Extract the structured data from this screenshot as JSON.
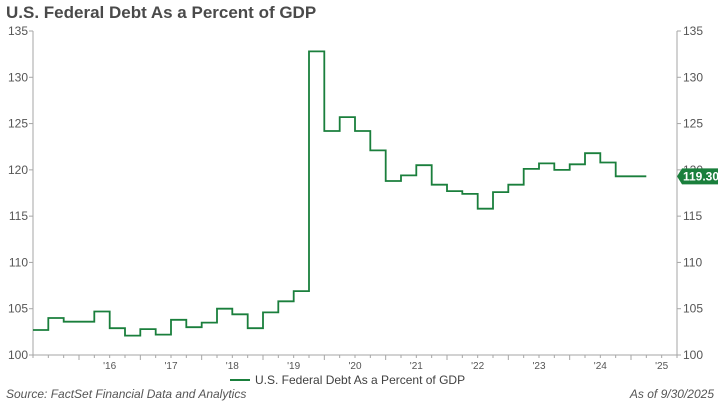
{
  "chart_data": {
    "type": "line",
    "title": "U.S. Federal Debt As a Percent of GDP",
    "x_tick_labels": [
      "'16",
      "'17",
      "'18",
      "'19",
      "'20",
      "'21",
      "'22",
      "'23",
      "'24",
      "'25"
    ],
    "x_tick_years": [
      2016,
      2017,
      2018,
      2019,
      2020,
      2021,
      2022,
      2023,
      2024,
      2025
    ],
    "xlim": [
      2015.25,
      2025.75
    ],
    "ylim": [
      100,
      135
    ],
    "y_ticks": [
      100,
      105,
      110,
      115,
      120,
      125,
      130,
      135
    ],
    "grid": false,
    "legend_position": "bottom-center",
    "series": [
      {
        "name": "U.S. Federal Debt As a Percent of GDP",
        "color": "#1a7f3c",
        "x": [
          2015.25,
          2015.5,
          2015.75,
          2016.0,
          2016.25,
          2016.5,
          2016.75,
          2017.0,
          2017.25,
          2017.5,
          2017.75,
          2018.0,
          2018.25,
          2018.5,
          2018.75,
          2019.0,
          2019.25,
          2019.5,
          2019.75,
          2020.0,
          2020.25,
          2020.5,
          2020.75,
          2021.0,
          2021.25,
          2021.5,
          2021.75,
          2022.0,
          2022.25,
          2022.5,
          2022.75,
          2023.0,
          2023.25,
          2023.5,
          2023.75,
          2024.0,
          2024.25,
          2024.5,
          2024.75,
          2025.0
        ],
        "values": [
          102.7,
          104.0,
          103.6,
          103.6,
          104.7,
          102.9,
          102.1,
          102.8,
          102.2,
          103.8,
          103.0,
          103.5,
          105.0,
          104.4,
          102.9,
          104.6,
          105.8,
          106.9,
          132.8,
          124.2,
          125.7,
          124.2,
          122.1,
          118.8,
          119.4,
          120.5,
          118.4,
          117.7,
          117.4,
          115.8,
          117.6,
          118.4,
          120.1,
          120.7,
          120.0,
          120.6,
          121.8,
          120.8,
          119.3,
          119.3
        ]
      }
    ],
    "last_value_label": "119.30",
    "annotations": {
      "source": "Source: FactSet Financial Data and Analytics",
      "as_of": "As of 9/30/2025"
    }
  }
}
